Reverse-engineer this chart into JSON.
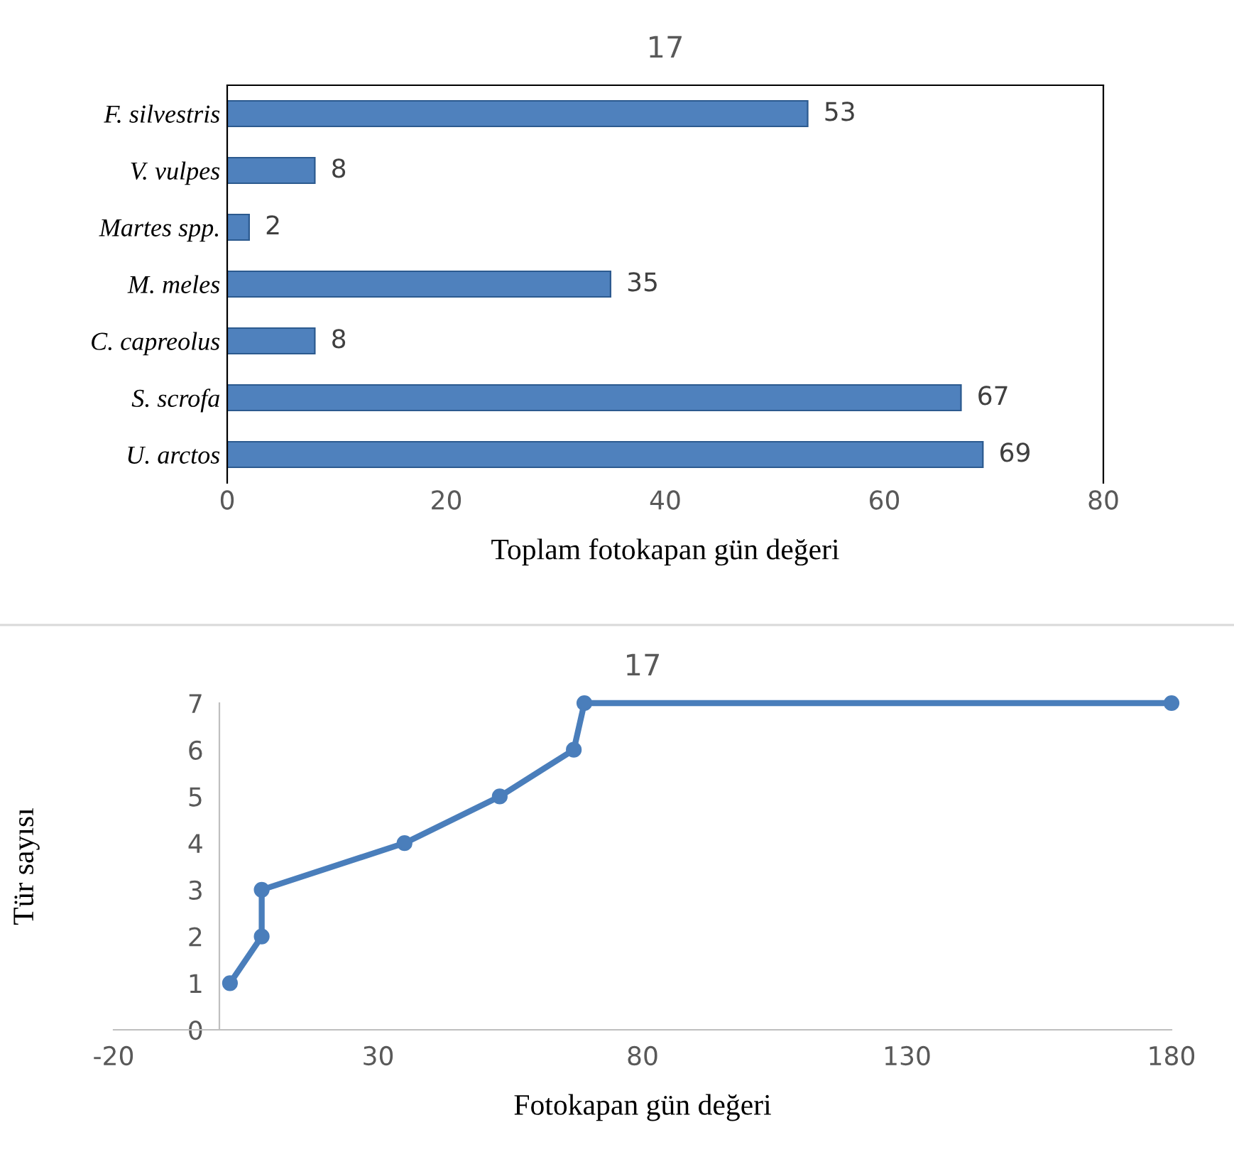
{
  "chart_data": [
    {
      "type": "bar",
      "orientation": "horizontal",
      "title": "17",
      "xlabel": "Toplam fotokapan gün değeri",
      "categories": [
        "F. silvestris",
        "V. vulpes",
        "Martes spp.",
        "M. meles",
        "C. capreolus",
        "S. scrofa",
        "U. arctos"
      ],
      "values": [
        53,
        8,
        2,
        35,
        8,
        67,
        69
      ],
      "color": "#4f81bd",
      "data_labels": true,
      "xlim": [
        0,
        80
      ],
      "xticks": [
        0,
        20,
        40,
        60,
        80
      ],
      "grid": false
    },
    {
      "type": "line",
      "title": "17",
      "xlabel": "Fotokapan gün değeri",
      "ylabel": "Tür sayısı",
      "x": [
        2,
        8,
        8,
        35,
        53,
        67,
        69,
        180
      ],
      "values": [
        1,
        2,
        3,
        4,
        5,
        6,
        7,
        7
      ],
      "color": "#4a7ebb",
      "marker": "circle",
      "line_style": "solid",
      "xlim": [
        -20,
        180
      ],
      "xticks": [
        -20,
        30,
        80,
        130,
        180
      ],
      "ylim": [
        0,
        7
      ],
      "yticks": [
        0,
        1,
        2,
        3,
        4,
        5,
        6,
        7
      ],
      "grid": false
    }
  ]
}
